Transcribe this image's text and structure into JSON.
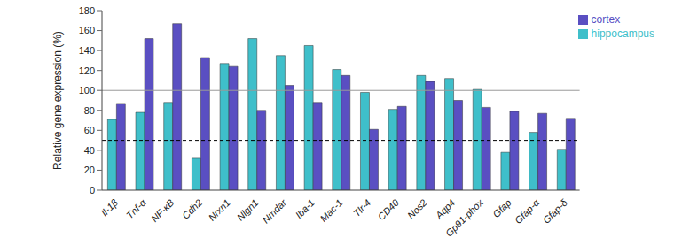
{
  "chart_data": {
    "type": "bar",
    "y_label": "Relative gene expression (%)",
    "categories": [
      "Il-1β",
      "Tnf-α",
      "NF-κB",
      "Cdh2",
      "Nrxn1",
      "Nlgn1",
      "Nmdar",
      "Iba-1",
      "Mac-1",
      "Tlr-4",
      "CD40",
      "Nos2",
      "Aqp4",
      "Gp91-phox",
      "Gfap",
      "Gfap-α",
      "Gfap-δ"
    ],
    "series": [
      {
        "name": "hippocampus",
        "color": "#3fbfca",
        "values": [
          71,
          78,
          88,
          32,
          127,
          152,
          135,
          145,
          121,
          98,
          81,
          115,
          112,
          101,
          38,
          58,
          41
        ]
      },
      {
        "name": "cortex",
        "color": "#5a4fc2",
        "values": [
          87,
          152,
          167,
          133,
          124,
          80,
          105,
          88,
          115,
          61,
          84,
          109,
          90,
          83,
          79,
          77,
          72
        ]
      }
    ],
    "ylim": [
      0,
      180
    ],
    "yticks": [
      0,
      20,
      40,
      60,
      80,
      100,
      120,
      140,
      160,
      180
    ],
    "grid": false,
    "legend": "upper right",
    "reference_lines": [
      {
        "value": 100,
        "line_style": "solid",
        "color": "#999999"
      },
      {
        "value": 50,
        "line_style": "dashed",
        "color": "#000000"
      }
    ]
  }
}
